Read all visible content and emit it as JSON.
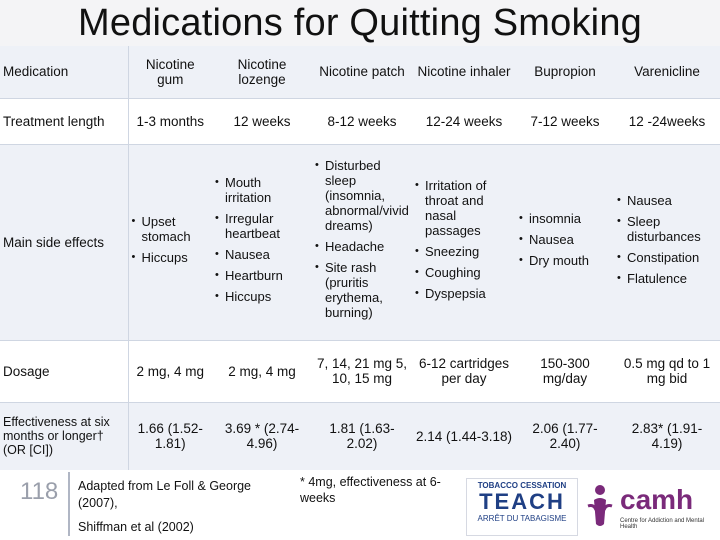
{
  "slide": {
    "title": "Medications for Quitting Smoking",
    "number": "118"
  },
  "table": {
    "header": {
      "label": "Medication",
      "columns": [
        "Nicotine gum",
        "Nicotine lozenge",
        "Nicotine patch",
        "Nicotine inhaler",
        "Bupropion",
        "Varenicline"
      ]
    },
    "treatment": {
      "label": "Treatment length",
      "values": [
        "1-3 months",
        "12 weeks",
        "8-12 weeks",
        "12-24 weeks",
        "7-12 weeks",
        "12 -24weeks"
      ]
    },
    "effects": {
      "label": "Main side effects",
      "gum": [
        "Upset stomach",
        "Hiccups"
      ],
      "lozenge": [
        "Mouth irritation",
        "Irregular heartbeat",
        "Nausea",
        "Heartburn",
        "Hiccups"
      ],
      "patch": [
        "Disturbed sleep (insomnia, abnormal/vivid dreams)",
        "Headache",
        "Site rash (pruritis erythema, burning)"
      ],
      "inhaler": [
        "Irritation of throat and nasal passages",
        "Sneezing",
        "Coughing",
        "Dyspepsia"
      ],
      "bupropion": [
        "insomnia",
        "Nausea",
        "Dry mouth"
      ],
      "varenicline": [
        "Nausea",
        "Sleep disturbances",
        "Constipation",
        "Flatulence"
      ]
    },
    "dosage": {
      "label": "Dosage",
      "values": [
        "2 mg, 4 mg",
        "2 mg, 4 mg",
        "7, 14, 21 mg 5, 10, 15 mg",
        "6-12 cartridges per day",
        "150-300 mg/day",
        "0.5 mg qd to 1 mg bid"
      ]
    },
    "effectiveness": {
      "label": "Effectiveness at six months or longer† (OR [CI])",
      "values": [
        "1.66 (1.52-1.81)",
        "3.69 * (2.74-4.96)",
        "1.81 (1.63-2.02)",
        "2.14 (1.44-3.18)",
        "2.06 (1.77-2.40)",
        "2.83* (1.91-4.19)"
      ]
    }
  },
  "footer": {
    "citation_line1": "Adapted from Le Foll & George (2007),",
    "citation_line2": "Shiffman et al (2002)",
    "footnote": "* 4mg, effectiveness at 6-weeks",
    "teach_logo_top": "TOBACCO CESSATION",
    "teach_logo_main": "TEACH",
    "teach_logo_bottom": "ARRÊT DU TABAGISME",
    "camh_logo_word": "camh",
    "camh_logo_sub": "Centre for Addiction and Mental Health"
  },
  "colors": {
    "accent": "#2b5fa8",
    "row_shade": "#eef1f7",
    "gridline": "#cfd6e2",
    "camh": "#7a2a7a"
  }
}
